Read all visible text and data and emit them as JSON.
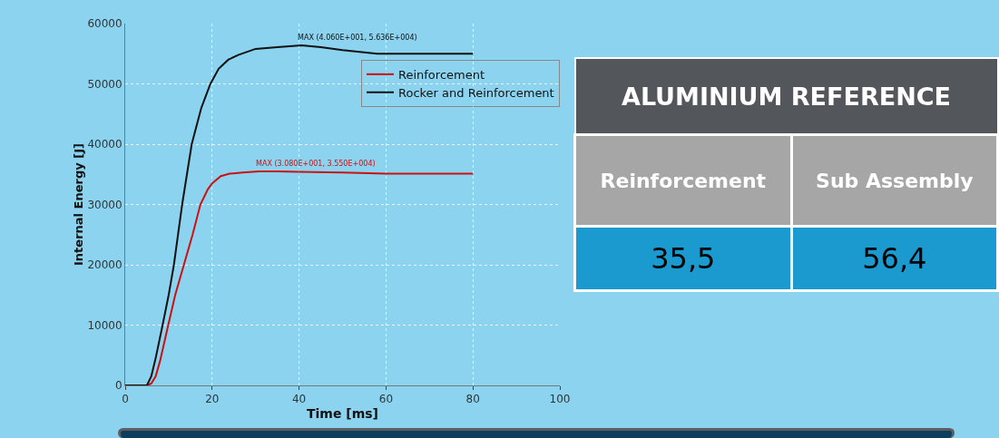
{
  "chart_data": [
    {
      "type": "line",
      "xlabel": "Time [ms]",
      "ylabel": "Internal Energy [J]",
      "xlim": [
        0,
        100
      ],
      "xticks": [
        0,
        20,
        40,
        60,
        80,
        100
      ],
      "ylim": [
        0,
        60000
      ],
      "yticks": [
        0,
        10000,
        20000,
        30000,
        40000,
        50000,
        60000
      ],
      "grid": true,
      "legend": "top right",
      "line_style": "solid",
      "marker": "none",
      "series": [
        {
          "name": "Reinforcement",
          "color": "#cc1111",
          "x": [
            0,
            3,
            5,
            6,
            7,
            8,
            9.9,
            11.5,
            13.5,
            15.5,
            17.3,
            19,
            20,
            22,
            24,
            27,
            30.8,
            35,
            40,
            50,
            60,
            70,
            80
          ],
          "values": [
            0,
            0,
            0,
            300,
            1500,
            4000,
            10000,
            15000,
            20000,
            25000,
            30000,
            32500,
            33500,
            34700,
            35100,
            35300,
            35500,
            35500,
            35400,
            35300,
            35100,
            35100,
            35100
          ]
        },
        {
          "name": "Rocker and Reinforcement",
          "color": "#111111",
          "x": [
            0,
            3,
            5,
            6,
            7,
            8.6,
            10,
            11.2,
            13.1,
            15.3,
            17.5,
            19.6,
            21.5,
            23.7,
            26,
            30,
            35,
            40.6,
            45,
            50,
            58,
            70,
            80
          ],
          "values": [
            0,
            0,
            0,
            1500,
            4500,
            10000,
            15000,
            20000,
            30000,
            40000,
            46000,
            50000,
            52500,
            54000,
            54800,
            55800,
            56100,
            56400,
            56100,
            55600,
            55000,
            55000,
            55000
          ]
        }
      ],
      "annotations": [
        {
          "text": "MAX (4.060E+001, 5.636E+004)",
          "x": 40.6,
          "y": 56360
        },
        {
          "text": "MAX (3.080E+001, 3.550E+004)",
          "x": 30.8,
          "y": 35500
        }
      ]
    },
    {
      "type": "other",
      "title": "ALUMINIUM REFERENCE",
      "categories": [
        "Reinforcement",
        "Sub Assembly"
      ],
      "value_labels": [
        "35,5",
        "56,4"
      ]
    }
  ]
}
